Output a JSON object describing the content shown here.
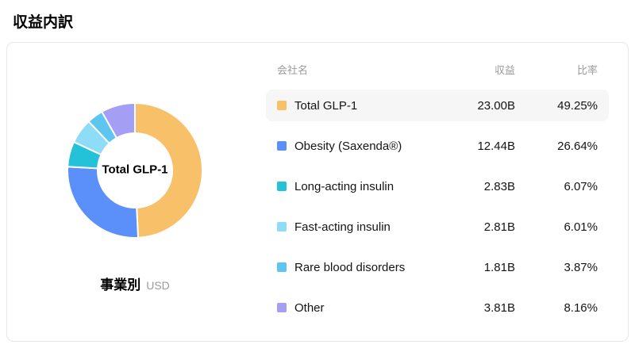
{
  "page": {
    "title": "収益内訳"
  },
  "chart": {
    "center_label": "Total GLP-1",
    "footer_label": "事業別",
    "footer_unit": "USD"
  },
  "table": {
    "headers": {
      "name": "会社名",
      "revenue": "収益",
      "ratio": "比率"
    },
    "rows": [
      {
        "name": "Total GLP-1",
        "revenue": "23.00B",
        "ratio": "49.25%",
        "color": "#F9C06A",
        "highlight": true
      },
      {
        "name": "Obesity (Saxenda®)",
        "revenue": "12.44B",
        "ratio": "26.64%",
        "color": "#5B8FF9",
        "highlight": false
      },
      {
        "name": "Long-acting insulin",
        "revenue": "2.83B",
        "ratio": "6.07%",
        "color": "#23C2D8",
        "highlight": false
      },
      {
        "name": "Fast-acting insulin",
        "revenue": "2.81B",
        "ratio": "6.01%",
        "color": "#8EDCF5",
        "highlight": false
      },
      {
        "name": "Rare blood disorders",
        "revenue": "1.81B",
        "ratio": "3.87%",
        "color": "#5EC4F0",
        "highlight": false
      },
      {
        "name": "Other",
        "revenue": "3.81B",
        "ratio": "8.16%",
        "color": "#A49EF4",
        "highlight": false
      }
    ]
  },
  "chart_data": {
    "type": "pie",
    "subtype": "donut",
    "title": "事業別",
    "unit": "USD",
    "center_label": "Total GLP-1",
    "start_angle": "top",
    "direction": "clockwise",
    "categories": [
      "Total GLP-1",
      "Obesity (Saxenda®)",
      "Long-acting insulin",
      "Fast-acting insulin",
      "Rare blood disorders",
      "Other"
    ],
    "values": [
      23.0,
      12.44,
      2.83,
      2.81,
      1.81,
      3.81
    ],
    "percentages": [
      49.25,
      26.64,
      6.07,
      6.01,
      3.87,
      8.16
    ],
    "colors": [
      "#F9C06A",
      "#5B8FF9",
      "#23C2D8",
      "#8EDCF5",
      "#5EC4F0",
      "#A49EF4"
    ]
  }
}
